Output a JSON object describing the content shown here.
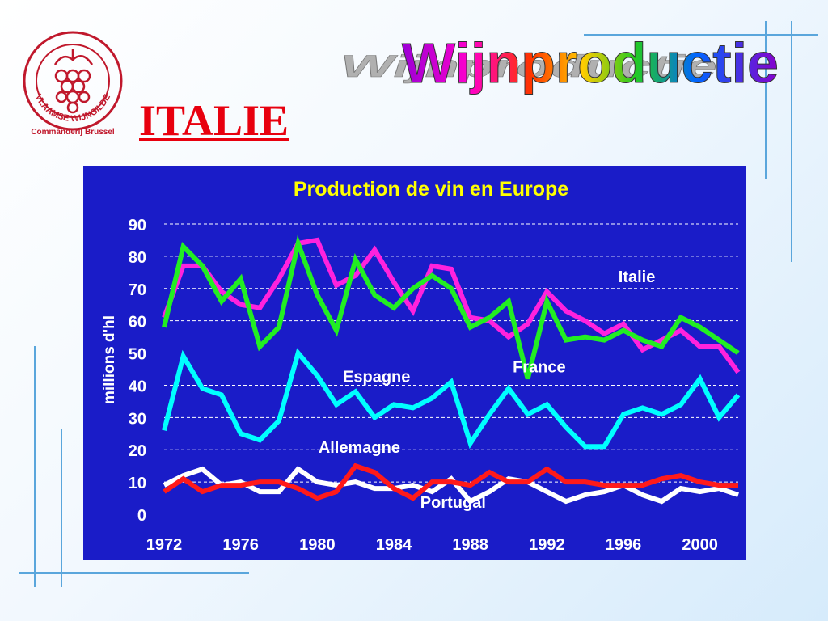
{
  "logo": {
    "ring_text": "VLAAMSE WIJNGILDE",
    "caption": "Commanderij Brussel",
    "color": "#c0182c"
  },
  "header": {
    "banner": "Wijnproductie",
    "section_title": "ITALIE"
  },
  "colors": {
    "title_red": "#e8000e",
    "panel_blue": "#1a1cc8",
    "title_yellow": "#ffff00"
  },
  "chart_data": {
    "type": "line",
    "title": "Production de vin en Europe",
    "ylabel": "millions d'hl",
    "xlabel": "",
    "xlim": [
      1972,
      2002
    ],
    "ylim": [
      0,
      90
    ],
    "y_ticks": [
      0,
      10,
      20,
      30,
      40,
      50,
      60,
      70,
      80,
      90
    ],
    "x_ticks": [
      1972,
      1976,
      1980,
      1984,
      1988,
      1992,
      1996,
      2000
    ],
    "grid": true,
    "x": [
      1972,
      1973,
      1974,
      1975,
      1976,
      1977,
      1978,
      1979,
      1980,
      1981,
      1982,
      1983,
      1984,
      1985,
      1986,
      1987,
      1988,
      1989,
      1990,
      1991,
      1992,
      1993,
      1994,
      1995,
      1996,
      1997,
      1998,
      1999,
      2000,
      2001,
      2002
    ],
    "series": [
      {
        "name": "Italie",
        "color": "#ff22dd",
        "values": [
          61,
          77,
          77,
          69,
          65,
          64,
          73,
          84,
          85,
          71,
          74,
          82,
          72,
          63,
          77,
          76,
          61,
          60,
          55,
          59,
          69,
          63,
          60,
          56,
          59,
          51,
          54,
          57,
          52,
          52,
          44
        ]
      },
      {
        "name": "France",
        "color": "#22ee22",
        "values": [
          58,
          83,
          77,
          66,
          73,
          52,
          58,
          84,
          68,
          57,
          79,
          68,
          64,
          70,
          74,
          70,
          58,
          61,
          66,
          42,
          66,
          54,
          55,
          54,
          57,
          54,
          52,
          61,
          58,
          54,
          50
        ]
      },
      {
        "name": "Espagne",
        "color": "#00ffff",
        "values": [
          26,
          49,
          39,
          37,
          25,
          23,
          29,
          50,
          43,
          34,
          38,
          30,
          34,
          33,
          36,
          41,
          22,
          31,
          39,
          31,
          34,
          27,
          21,
          21,
          31,
          33,
          31,
          34,
          42,
          30,
          37
        ]
      },
      {
        "name": "Allemagne",
        "color": "#ff1a1a",
        "values": [
          7,
          11,
          7,
          9,
          9,
          10,
          10,
          8,
          5,
          7,
          15,
          13,
          8,
          5,
          10,
          10,
          9,
          13,
          10,
          10,
          14,
          10,
          10,
          9,
          9,
          9,
          11,
          12,
          10,
          9,
          9
        ]
      },
      {
        "name": "Portugal",
        "color": "#ffffff",
        "values": [
          9,
          12,
          14,
          9,
          10,
          7,
          7,
          14,
          10,
          9,
          10,
          8,
          8,
          9,
          7,
          11,
          4,
          7,
          11,
          10,
          7,
          4,
          6,
          7,
          9,
          6,
          4,
          8,
          7,
          8,
          6
        ]
      }
    ],
    "series_labels": [
      {
        "series": "Italie",
        "x": 1996.7,
        "y": 72
      },
      {
        "series": "France",
        "x": 1991.6,
        "y": 44
      },
      {
        "series": "Espagne",
        "x": 1983.1,
        "y": 41
      },
      {
        "series": "Allemagne",
        "x": 1982.2,
        "y": 19
      },
      {
        "series": "Portugal",
        "x": 1987.1,
        "y": 2
      }
    ]
  }
}
